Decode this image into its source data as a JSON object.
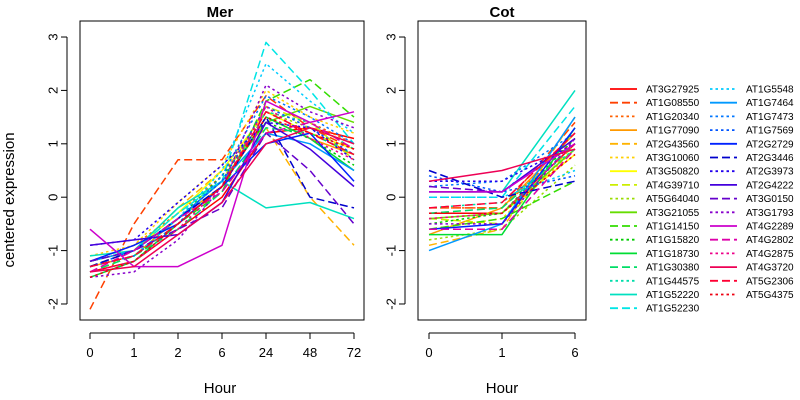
{
  "chart_data": {
    "type": "line",
    "ylabel": "centered expression",
    "xlabel": "Hour",
    "ylim": [
      -2.3,
      3.3
    ],
    "yticks": [
      -2,
      -1,
      0,
      1,
      2,
      3
    ],
    "grid": false,
    "legend_position": "right",
    "panels": [
      {
        "title": "Mer",
        "x": [
          "0",
          "1",
          "2",
          "6",
          "24",
          "48",
          "72"
        ],
        "series": [
          {
            "name": "AT3G27925",
            "color": "#ff0000",
            "dash": "solid",
            "values": [
              -1.4,
              -1.2,
              -0.6,
              0.0,
              1.2,
              1.3,
              1.1
            ]
          },
          {
            "name": "AT1G08550",
            "color": "#ff4000",
            "dash": "long",
            "values": [
              -2.1,
              -0.5,
              0.7,
              0.7,
              1.9,
              1.3,
              0.9
            ]
          },
          {
            "name": "AT1G20340",
            "color": "#ff6000",
            "dash": "dot",
            "values": [
              -1.2,
              -0.9,
              -0.3,
              0.4,
              1.6,
              1.4,
              1.0
            ]
          },
          {
            "name": "AT1G77090",
            "color": "#ff9900",
            "dash": "solid",
            "values": [
              -1.3,
              -1.1,
              -0.4,
              0.2,
              1.5,
              1.1,
              0.8
            ]
          },
          {
            "name": "AT2G43560",
            "color": "#ffb300",
            "dash": "long",
            "values": [
              -1.3,
              -1.0,
              -0.2,
              0.5,
              1.3,
              0.0,
              -0.9
            ]
          },
          {
            "name": "AT3G10060",
            "color": "#ffd000",
            "dash": "dot",
            "values": [
              -1.1,
              -0.9,
              -0.1,
              0.6,
              2.0,
              1.5,
              1.2
            ]
          },
          {
            "name": "AT3G50820",
            "color": "#ffff00",
            "dash": "solid",
            "values": [
              -1.2,
              -1.0,
              -0.3,
              0.5,
              1.6,
              1.2,
              0.9
            ]
          },
          {
            "name": "AT4G39710",
            "color": "#ccee00",
            "dash": "long",
            "values": [
              -1.3,
              -1.0,
              -0.3,
              0.3,
              1.7,
              1.4,
              0.7
            ]
          },
          {
            "name": "AT5G64040",
            "color": "#99dd00",
            "dash": "dot",
            "values": [
              -1.3,
              -1.1,
              -0.5,
              0.2,
              1.6,
              1.3,
              1.0
            ]
          },
          {
            "name": "AT3G21055",
            "color": "#66dd00",
            "dash": "solid",
            "values": [
              -1.2,
              -1.0,
              -0.4,
              0.3,
              1.4,
              1.7,
              1.4
            ]
          },
          {
            "name": "AT1G14150",
            "color": "#33dd00",
            "dash": "long",
            "values": [
              -1.4,
              -1.1,
              -0.5,
              0.1,
              1.8,
              2.2,
              1.5
            ]
          },
          {
            "name": "AT1G15820",
            "color": "#00cc00",
            "dash": "dot",
            "values": [
              -1.3,
              -1.1,
              -0.4,
              0.4,
              1.4,
              1.1,
              0.6
            ]
          },
          {
            "name": "AT1G18730",
            "color": "#00dd33",
            "dash": "solid",
            "values": [
              -1.5,
              -1.2,
              -0.5,
              0.2,
              1.5,
              1.1,
              0.5
            ]
          },
          {
            "name": "AT1G30380",
            "color": "#00dd66",
            "dash": "long",
            "values": [
              -1.4,
              -1.1,
              -0.6,
              0.1,
              1.3,
              1.2,
              0.8
            ]
          },
          {
            "name": "AT1G44575",
            "color": "#00ddaa",
            "dash": "dot",
            "values": [
              -1.3,
              -1.0,
              -0.4,
              0.2,
              1.6,
              1.4,
              0.9
            ]
          },
          {
            "name": "AT1G52220",
            "color": "#00e0c0",
            "dash": "solid",
            "values": [
              -1.1,
              -1.0,
              -0.2,
              0.3,
              -0.2,
              -0.1,
              -0.4
            ]
          },
          {
            "name": "AT1G52230",
            "color": "#00e5e5",
            "dash": "long",
            "values": [
              -1.2,
              -1.0,
              -0.3,
              0.3,
              2.9,
              2.0,
              1.0
            ]
          },
          {
            "name": "AT1G5548",
            "color": "#00ccff",
            "dash": "dot",
            "values": [
              -1.3,
              -1.1,
              -0.4,
              0.5,
              2.5,
              1.8,
              1.2
            ]
          },
          {
            "name": "AT1G7464",
            "color": "#0099ff",
            "dash": "solid",
            "values": [
              -1.2,
              -1.0,
              -0.4,
              0.3,
              1.2,
              1.0,
              0.5
            ]
          },
          {
            "name": "AT1G7473",
            "color": "#0077ff",
            "dash": "dot",
            "values": [
              -1.3,
              -1.1,
              -0.5,
              0.4,
              1.9,
              1.5,
              1.0
            ]
          },
          {
            "name": "AT1G7569",
            "color": "#0055ff",
            "dash": "dot",
            "values": [
              -1.3,
              -1.0,
              -0.4,
              0.3,
              1.7,
              1.3,
              0.8
            ]
          },
          {
            "name": "AT2G2729",
            "color": "#0022ff",
            "dash": "solid",
            "values": [
              -1.2,
              -0.9,
              -0.5,
              0.2,
              1.0,
              1.2,
              0.3
            ]
          },
          {
            "name": "AT2G3446",
            "color": "#0000cc",
            "dash": "long",
            "values": [
              -1.3,
              -1.0,
              -0.4,
              0.2,
              1.5,
              0.0,
              -0.2
            ]
          },
          {
            "name": "AT2G3973",
            "color": "#2200ee",
            "dash": "dot",
            "values": [
              -0.9,
              -0.8,
              -0.1,
              0.6,
              1.4,
              1.3,
              0.7
            ]
          },
          {
            "name": "AT2G4222",
            "color": "#4400dd",
            "dash": "solid",
            "values": [
              -0.9,
              -0.8,
              -0.7,
              -0.1,
              1.4,
              0.9,
              0.2
            ]
          },
          {
            "name": "AT3G0150",
            "color": "#6600cc",
            "dash": "long",
            "values": [
              -1.2,
              -1.0,
              -0.6,
              -0.2,
              1.2,
              0.5,
              -0.5
            ]
          },
          {
            "name": "AT3G1793",
            "color": "#8800cc",
            "dash": "dot",
            "values": [
              -1.5,
              -1.4,
              -0.8,
              0.2,
              2.1,
              1.6,
              1.3
            ]
          },
          {
            "name": "AT4G2289",
            "color": "#cc00cc",
            "dash": "solid",
            "values": [
              -0.6,
              -1.3,
              -1.3,
              -0.9,
              1.8,
              1.4,
              1.6
            ]
          },
          {
            "name": "AT4G2802",
            "color": "#dd00aa",
            "dash": "long",
            "values": [
              -1.4,
              -1.0,
              -0.4,
              0.1,
              1.2,
              1.4,
              0.9
            ]
          },
          {
            "name": "AT4G2875",
            "color": "#ee0088",
            "dash": "dot",
            "values": [
              -1.4,
              -1.2,
              -0.6,
              0.2,
              1.7,
              1.1,
              0.7
            ]
          },
          {
            "name": "AT4G3720",
            "color": "#ee0055",
            "dash": "solid",
            "values": [
              -1.4,
              -1.3,
              -0.7,
              -0.1,
              1.0,
              1.3,
              1.0
            ]
          },
          {
            "name": "AT5G2306",
            "color": "#ff0033",
            "dash": "long",
            "values": [
              -1.3,
              -1.1,
              -0.5,
              0.2,
              1.6,
              1.2,
              0.8
            ]
          },
          {
            "name": "AT5G4375",
            "color": "#ee0011",
            "dash": "dot",
            "values": [
              -1.5,
              -1.2,
              -0.5,
              0.2,
              1.5,
              1.2,
              0.9
            ]
          }
        ]
      },
      {
        "title": "Cot",
        "x": [
          "0",
          "1",
          "6"
        ],
        "series": [
          {
            "name": "AT3G27925",
            "color": "#ff0000",
            "dash": "solid",
            "values": [
              -0.3,
              -0.3,
              1.0
            ]
          },
          {
            "name": "AT1G08550",
            "color": "#ff4000",
            "dash": "long",
            "values": [
              -0.2,
              -0.2,
              1.4
            ]
          },
          {
            "name": "AT1G20340",
            "color": "#ff6000",
            "dash": "dot",
            "values": [
              -0.2,
              -0.2,
              1.1
            ]
          },
          {
            "name": "AT1G77090",
            "color": "#ff9900",
            "dash": "solid",
            "values": [
              -0.7,
              -0.2,
              1.2
            ]
          },
          {
            "name": "AT2G43560",
            "color": "#ffb300",
            "dash": "long",
            "values": [
              -0.9,
              -0.6,
              1.5
            ]
          },
          {
            "name": "AT3G10060",
            "color": "#ffd000",
            "dash": "dot",
            "values": [
              -0.6,
              -0.4,
              0.9
            ]
          },
          {
            "name": "AT3G50820",
            "color": "#ffff00",
            "dash": "solid",
            "values": [
              -0.4,
              -0.3,
              0.8
            ]
          },
          {
            "name": "AT4G39710",
            "color": "#ccee00",
            "dash": "long",
            "values": [
              -0.4,
              -0.5,
              1.0
            ]
          },
          {
            "name": "AT5G64040",
            "color": "#99dd00",
            "dash": "dot",
            "values": [
              -0.8,
              -0.6,
              0.6
            ]
          },
          {
            "name": "AT3G21055",
            "color": "#66dd00",
            "dash": "solid",
            "values": [
              -0.4,
              -0.3,
              0.9
            ]
          },
          {
            "name": "AT1G14150",
            "color": "#33dd00",
            "dash": "long",
            "values": [
              -0.6,
              -0.4,
              0.3
            ]
          },
          {
            "name": "AT1G15820",
            "color": "#00cc00",
            "dash": "dot",
            "values": [
              -0.5,
              -0.3,
              1.1
            ]
          },
          {
            "name": "AT1G18730",
            "color": "#00dd33",
            "dash": "solid",
            "values": [
              -0.7,
              -0.7,
              1.3
            ]
          },
          {
            "name": "AT1G30380",
            "color": "#00dd66",
            "dash": "long",
            "values": [
              -0.3,
              -0.2,
              1.0
            ]
          },
          {
            "name": "AT1G44575",
            "color": "#00ddaa",
            "dash": "dot",
            "values": [
              -0.2,
              -0.1,
              0.9
            ]
          },
          {
            "name": "AT1G52220",
            "color": "#00e0c0",
            "dash": "solid",
            "values": [
              0.1,
              0.1,
              2.0
            ]
          },
          {
            "name": "AT1G52230",
            "color": "#00e5e5",
            "dash": "long",
            "values": [
              0.0,
              0.0,
              1.7
            ]
          },
          {
            "name": "AT1G5548",
            "color": "#00ccff",
            "dash": "dot",
            "values": [
              0.0,
              0.0,
              0.5
            ]
          },
          {
            "name": "AT1G7464",
            "color": "#0099ff",
            "dash": "solid",
            "values": [
              -1.0,
              -0.5,
              1.5
            ]
          },
          {
            "name": "AT1G7473",
            "color": "#0077ff",
            "dash": "dot",
            "values": [
              0.2,
              0.3,
              1.2
            ]
          },
          {
            "name": "AT1G7569",
            "color": "#0055ff",
            "dash": "dot",
            "values": [
              0.4,
              0.1,
              0.4
            ]
          },
          {
            "name": "AT2G2729",
            "color": "#0022ff",
            "dash": "solid",
            "values": [
              -0.6,
              -0.5,
              1.3
            ]
          },
          {
            "name": "AT2G3446",
            "color": "#0000cc",
            "dash": "long",
            "values": [
              0.5,
              0.0,
              0.3
            ]
          },
          {
            "name": "AT2G3973",
            "color": "#2200ee",
            "dash": "dot",
            "values": [
              0.3,
              0.3,
              1.0
            ]
          },
          {
            "name": "AT2G4222",
            "color": "#4400dd",
            "dash": "solid",
            "values": [
              0.1,
              0.1,
              1.1
            ]
          },
          {
            "name": "AT3G0150",
            "color": "#6600cc",
            "dash": "long",
            "values": [
              0.2,
              0.1,
              1.0
            ]
          },
          {
            "name": "AT3G1793",
            "color": "#8800cc",
            "dash": "dot",
            "values": [
              -0.5,
              -0.5,
              1.1
            ]
          },
          {
            "name": "AT4G2289",
            "color": "#cc00cc",
            "dash": "solid",
            "values": [
              0.1,
              0.1,
              1.0
            ]
          },
          {
            "name": "AT4G2802",
            "color": "#dd00aa",
            "dash": "long",
            "values": [
              -0.6,
              -0.6,
              0.9
            ]
          },
          {
            "name": "AT4G2875",
            "color": "#ee0088",
            "dash": "dot",
            "values": [
              -0.4,
              -0.3,
              1.0
            ]
          },
          {
            "name": "AT4G3720",
            "color": "#ee0055",
            "dash": "solid",
            "values": [
              0.3,
              0.5,
              0.9
            ]
          },
          {
            "name": "AT5G2306",
            "color": "#ff0033",
            "dash": "long",
            "values": [
              -0.2,
              -0.1,
              1.2
            ]
          },
          {
            "name": "AT5G4375",
            "color": "#ee0011",
            "dash": "dot",
            "values": [
              -0.3,
              -0.3,
              0.8
            ]
          }
        ]
      }
    ]
  }
}
